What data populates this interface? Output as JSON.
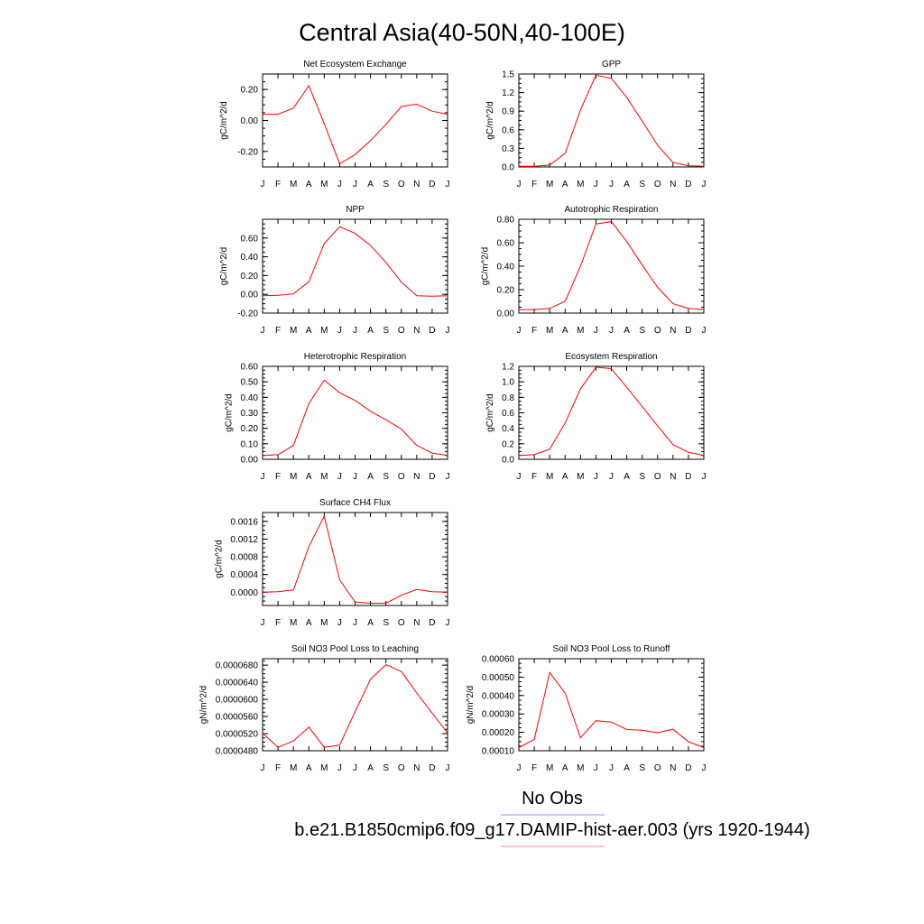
{
  "title": "Central Asia(40-50N,40-100E)",
  "legend": {
    "entries": [
      {
        "label": "No Obs",
        "color": "#8888ff"
      },
      {
        "label": "b.e21.B1850cmip6.f09_g17.DAMIP-hist-aer.003 (yrs 1920-1944)",
        "color": "#ff8888"
      }
    ]
  },
  "colors": {
    "line": "#ff0000",
    "axis": "#000000"
  },
  "chart_data": [
    {
      "type": "line",
      "title": "Net Ecosystem Exchange",
      "ylabel": "gC/m^2/d",
      "categories": [
        "J",
        "F",
        "M",
        "A",
        "M",
        "J",
        "J",
        "A",
        "S",
        "O",
        "N",
        "D",
        "J"
      ],
      "ylim": [
        -0.3,
        0.3
      ],
      "yticks": [
        -0.2,
        0.0,
        0.2
      ],
      "yticklabels": [
        "-0.20",
        "0.00",
        "0.20"
      ],
      "values": [
        0.04,
        0.04,
        0.08,
        0.225,
        -0.02,
        -0.28,
        -0.22,
        -0.13,
        -0.025,
        0.09,
        0.105,
        0.06,
        0.04
      ]
    },
    {
      "type": "line",
      "title": "GPP",
      "ylabel": "gC/m^2/d",
      "categories": [
        "J",
        "F",
        "M",
        "A",
        "M",
        "J",
        "J",
        "A",
        "S",
        "O",
        "N",
        "D",
        "J"
      ],
      "ylim": [
        0,
        1.5
      ],
      "yticks": [
        0,
        0.3,
        0.6,
        0.9,
        1.2,
        1.5
      ],
      "yticklabels": [
        "0.0",
        "0.3",
        "0.6",
        "0.9",
        "1.2",
        "1.5"
      ],
      "values": [
        0.01,
        0.01,
        0.03,
        0.22,
        0.92,
        1.48,
        1.43,
        1.12,
        0.74,
        0.35,
        0.07,
        0.02,
        0.01
      ]
    },
    {
      "type": "line",
      "title": "NPP",
      "ylabel": "gC/m^2/d",
      "categories": [
        "J",
        "F",
        "M",
        "A",
        "M",
        "J",
        "J",
        "A",
        "S",
        "O",
        "N",
        "D",
        "J"
      ],
      "ylim": [
        -0.2,
        0.8
      ],
      "yticks": [
        -0.2,
        0.0,
        0.2,
        0.4,
        0.6
      ],
      "yticklabels": [
        "-0.20",
        "0.00",
        "0.20",
        "0.40",
        "0.60"
      ],
      "values": [
        -0.015,
        -0.01,
        0.005,
        0.135,
        0.54,
        0.72,
        0.65,
        0.52,
        0.34,
        0.13,
        -0.015,
        -0.02,
        -0.015
      ]
    },
    {
      "type": "line",
      "title": "Autotrophic Respiration",
      "ylabel": "gC/m^2/d",
      "categories": [
        "J",
        "F",
        "M",
        "A",
        "M",
        "J",
        "J",
        "A",
        "S",
        "O",
        "N",
        "D",
        "J"
      ],
      "ylim": [
        0,
        0.8
      ],
      "yticks": [
        0,
        0.2,
        0.4,
        0.6,
        0.8
      ],
      "yticklabels": [
        "0.00",
        "0.20",
        "0.40",
        "0.60",
        "0.80"
      ],
      "values": [
        0.03,
        0.03,
        0.04,
        0.1,
        0.4,
        0.76,
        0.78,
        0.61,
        0.41,
        0.22,
        0.08,
        0.04,
        0.03
      ]
    },
    {
      "type": "line",
      "title": "Heterotrophic Respiration",
      "ylabel": "gC/m^2/d",
      "categories": [
        "J",
        "F",
        "M",
        "A",
        "M",
        "J",
        "J",
        "A",
        "S",
        "O",
        "N",
        "D",
        "J"
      ],
      "ylim": [
        0,
        0.6
      ],
      "yticks": [
        0,
        0.1,
        0.2,
        0.3,
        0.4,
        0.5,
        0.6
      ],
      "yticklabels": [
        "0.00",
        "0.10",
        "0.20",
        "0.30",
        "0.40",
        "0.50",
        "0.60"
      ],
      "values": [
        0.025,
        0.03,
        0.09,
        0.36,
        0.51,
        0.43,
        0.38,
        0.31,
        0.255,
        0.195,
        0.09,
        0.04,
        0.025
      ]
    },
    {
      "type": "line",
      "title": "Ecosystem Respiration",
      "ylabel": "gC/m^2/d",
      "categories": [
        "J",
        "F",
        "M",
        "A",
        "M",
        "J",
        "J",
        "A",
        "S",
        "O",
        "N",
        "D",
        "J"
      ],
      "ylim": [
        0,
        1.2
      ],
      "yticks": [
        0,
        0.2,
        0.4,
        0.6,
        0.8,
        1.0,
        1.2
      ],
      "yticklabels": [
        "0.0",
        "0.2",
        "0.4",
        "0.6",
        "0.8",
        "1.0",
        "1.2"
      ],
      "values": [
        0.05,
        0.06,
        0.13,
        0.47,
        0.91,
        1.19,
        1.17,
        0.93,
        0.68,
        0.43,
        0.19,
        0.09,
        0.05
      ]
    },
    {
      "type": "line",
      "title": "Surface CH4 Flux",
      "ylabel": "gC/m^2/d",
      "categories": [
        "J",
        "F",
        "M",
        "A",
        "M",
        "J",
        "J",
        "A",
        "S",
        "O",
        "N",
        "D",
        "J"
      ],
      "ylim": [
        -0.0003,
        0.0018
      ],
      "yticks": [
        0.0,
        0.0004,
        0.0008,
        0.0012,
        0.0016
      ],
      "yticklabels": [
        "0.0000",
        "0.0004",
        "0.0008",
        "0.0012",
        "0.0016"
      ],
      "values": [
        0.0,
        1e-05,
        5e-05,
        0.00103,
        0.00172,
        0.00028,
        -0.00022,
        -0.00025,
        -0.00025,
        -7e-05,
        6e-05,
        1e-05,
        0.0
      ]
    },
    {
      "type": "line",
      "title": "Soil NO3 Pool Loss to Leaching",
      "ylabel": "gN/m^2/d",
      "categories": [
        "J",
        "F",
        "M",
        "A",
        "M",
        "J",
        "J",
        "A",
        "S",
        "O",
        "N",
        "D",
        "J"
      ],
      "ylim": [
        4.8e-05,
        6.95e-05
      ],
      "yticks": [
        4.8e-05,
        5.2e-05,
        5.6e-05,
        6e-05,
        6.4e-05,
        6.8e-05
      ],
      "yticklabels": [
        "0.0000480",
        "0.0000520",
        "0.0000560",
        "0.0000600",
        "0.0000640",
        "0.0000680"
      ],
      "values": [
        5.21e-05,
        4.88e-05,
        5.03e-05,
        5.35e-05,
        4.88e-05,
        4.93e-05,
        5.71e-05,
        6.47e-05,
        6.81e-05,
        6.65e-05,
        6.15e-05,
        5.68e-05,
        5.21e-05
      ]
    },
    {
      "type": "line",
      "title": "Soil NO3 Pool Loss to Runoff",
      "ylabel": "gN/m^2/d",
      "categories": [
        "J",
        "F",
        "M",
        "A",
        "M",
        "J",
        "J",
        "A",
        "S",
        "O",
        "N",
        "D",
        "J"
      ],
      "ylim": [
        0.0001,
        0.0006
      ],
      "yticks": [
        0.0001,
        0.0002,
        0.0003,
        0.0004,
        0.0005,
        0.0006
      ],
      "yticklabels": [
        "0.00010",
        "0.00020",
        "0.00030",
        "0.00040",
        "0.00050",
        "0.00060"
      ],
      "values": [
        0.000117,
        0.000162,
        0.000525,
        0.000413,
        0.00017,
        0.000263,
        0.000256,
        0.000215,
        0.000212,
        0.000198,
        0.000217,
        0.000149,
        0.000117
      ]
    }
  ]
}
